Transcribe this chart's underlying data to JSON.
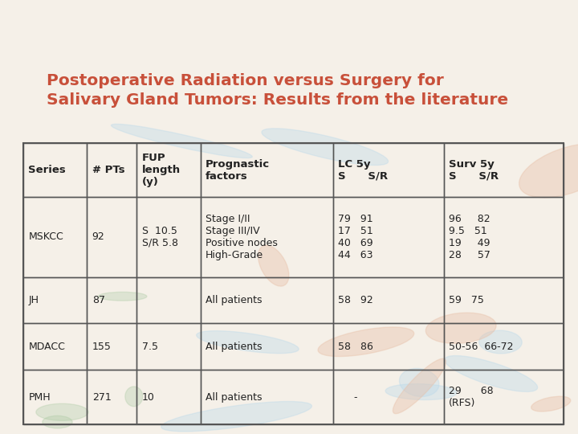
{
  "title_line1": "Postoperative Radiation versus Surgery for",
  "title_line2": "Salivary Gland Tumors: Results from the literature",
  "title_color": "#C8503A",
  "bg_color_top_band": "#8B9E8E",
  "bg_color_main": "#F5F0E8",
  "table_bg": "none",
  "border_color": "#555555",
  "text_color": "#222222",
  "header_texts": [
    "Series",
    "# PTs",
    "FUP\nlength\n(y)",
    "Prognastic\nfactors",
    "LC 5y\nS      S/R",
    "Surv 5y\nS      S/R"
  ],
  "rows": [
    [
      "MSKCC",
      "92",
      "S  10.5\nS/R 5.8",
      "Stage I/II\nStage III/IV\nPositive nodes\nHigh-Grade",
      "79   91\n17   51\n40   69\n44   63",
      "96     82\n9.5   51\n19     49\n28     57"
    ],
    [
      "JH",
      "87",
      "",
      "All patients",
      "58   92",
      "59   75"
    ],
    [
      "MDACC",
      "155",
      "7.5",
      "All patients",
      "58   86",
      "50-56  66-72"
    ],
    [
      "PMH",
      "271",
      "10",
      "All patients",
      "     -",
      "29      68\n(RFS)"
    ]
  ],
  "col_props": [
    0.118,
    0.092,
    0.118,
    0.245,
    0.205,
    0.222
  ],
  "row_props": [
    0.19,
    0.285,
    0.165,
    0.165,
    0.195
  ],
  "title_fontsize": 14.5,
  "header_fontsize": 9.5,
  "cell_fontsize": 9.0
}
